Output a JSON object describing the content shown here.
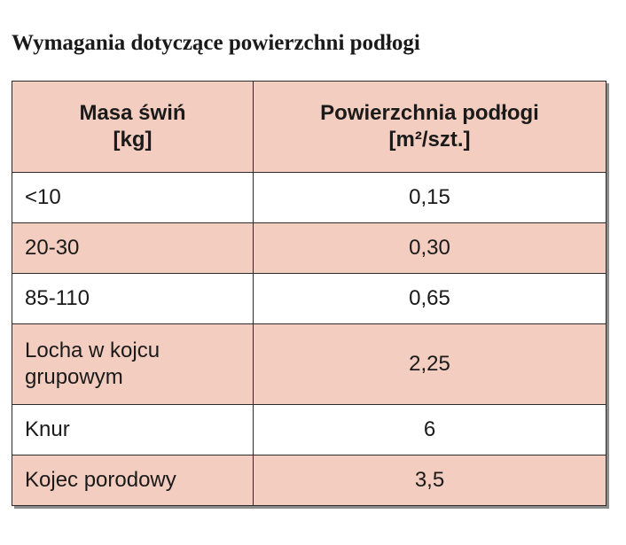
{
  "title": "Wymagania dotyczące powierzchni podłogi",
  "table": {
    "headers": {
      "mass": [
        "Masa świń",
        "[kg]"
      ],
      "area": [
        "Powierzchnia podłogi",
        "[m²/szt.]"
      ]
    },
    "rows": [
      {
        "mass": "<10",
        "area": "0,15"
      },
      {
        "mass": "20-30",
        "area": "0,30"
      },
      {
        "mass": "85-110",
        "area": "0,65"
      },
      {
        "mass": "Locha w kojcu grupowym",
        "area": "2,25"
      },
      {
        "mass": "Knur",
        "area": "6"
      },
      {
        "mass": "Kojec porodowy",
        "area": "3,5"
      }
    ]
  },
  "colors": {
    "header_fill": "#f3cdbf",
    "stripe_fill": "#f3cdbf",
    "plain_fill": "#ffffff",
    "border": "#2b2b2b"
  }
}
